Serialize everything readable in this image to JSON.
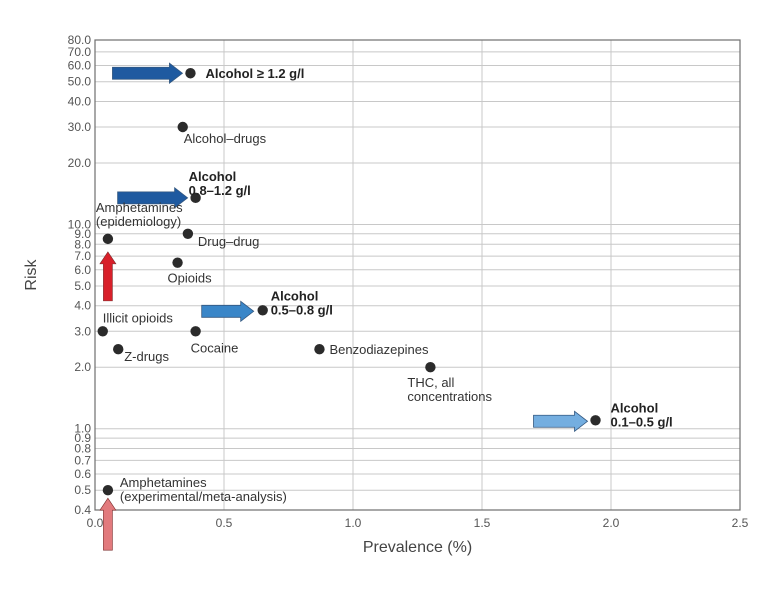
{
  "chart_data": {
    "type": "scatter",
    "title": "",
    "xlabel": "Prevalence (%)",
    "ylabel": "Risk",
    "xlim": [
      0,
      2.5
    ],
    "ylim": [
      0.4,
      80
    ],
    "yscale": "log",
    "grid": true,
    "x_ticks": [
      "0.0",
      "0.5",
      "1.0",
      "1.5",
      "2.0",
      "2.5"
    ],
    "y_ticks": [
      "0.4",
      "0.5",
      "0.6",
      "0.7",
      "0.8",
      "0.9",
      "1.0",
      "2.0",
      "3.0",
      "4.0",
      "5.0",
      "6.0",
      "7.0",
      "8.0",
      "9.0",
      "10.0",
      "20.0",
      "30.0",
      "40.0",
      "50.0",
      "60.0",
      "70.0",
      "80.0"
    ],
    "points": [
      {
        "label": [
          "Alcohol ≥ 1.2 g/l"
        ],
        "x": 0.37,
        "y": 55,
        "bold": true,
        "arrow": "dark-blue-right"
      },
      {
        "label": [
          "Alcohol–drugs"
        ],
        "x": 0.34,
        "y": 30,
        "bold": false
      },
      {
        "label": [
          "Alcohol",
          "0.8–1.2 g/l"
        ],
        "x": 0.39,
        "y": 13.5,
        "bold": true,
        "arrow": "dark-blue-right"
      },
      {
        "label": [
          "Amphetamines",
          "(epidemiology)"
        ],
        "x": 0.05,
        "y": 8.5,
        "bold": false,
        "arrow": "red-up"
      },
      {
        "label": [
          "Drug–drug"
        ],
        "x": 0.36,
        "y": 9.0,
        "bold": false
      },
      {
        "label": [
          "Opioids"
        ],
        "x": 0.32,
        "y": 6.5,
        "bold": false
      },
      {
        "label": [
          "Alcohol",
          "0.5–0.8 g/l"
        ],
        "x": 0.65,
        "y": 3.8,
        "bold": true,
        "arrow": "mid-blue-right"
      },
      {
        "label": [
          "Illicit opioids"
        ],
        "x": 0.03,
        "y": 3.0,
        "bold": false
      },
      {
        "label": [
          "Cocaine"
        ],
        "x": 0.39,
        "y": 3.0,
        "bold": false
      },
      {
        "label": [
          "Z-drugs"
        ],
        "x": 0.09,
        "y": 2.45,
        "bold": false
      },
      {
        "label": [
          "Benzodiazepines"
        ],
        "x": 0.87,
        "y": 2.45,
        "bold": false
      },
      {
        "label": [
          "THC, all",
          "concentrations"
        ],
        "x": 1.3,
        "y": 2.0,
        "bold": false
      },
      {
        "label": [
          "Alcohol",
          "0.1–0.5 g/l"
        ],
        "x": 1.94,
        "y": 1.1,
        "bold": true,
        "arrow": "light-blue-right"
      },
      {
        "label": [
          "Amphetamines",
          "(experimental/meta-analysis)"
        ],
        "x": 0.05,
        "y": 0.5,
        "bold": false,
        "arrow": "pink-up"
      }
    ],
    "colors": {
      "point": "#2b2b2b",
      "dark-blue": "#1f5aa0",
      "mid-blue": "#3a86c8",
      "light-blue": "#74aee0",
      "red": "#d8202a",
      "pink": "#e27a7d",
      "grid": "#c8c8c8"
    }
  }
}
